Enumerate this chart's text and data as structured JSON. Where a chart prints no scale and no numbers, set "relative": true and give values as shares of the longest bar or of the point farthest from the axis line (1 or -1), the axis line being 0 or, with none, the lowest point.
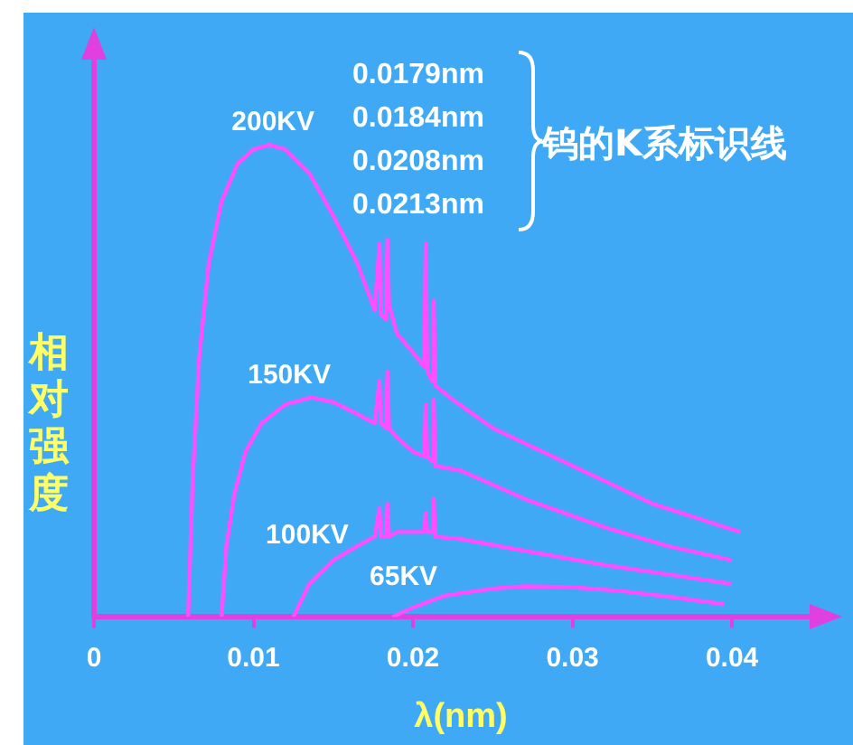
{
  "chart_data": {
    "type": "line",
    "relative": true,
    "xlabel": "λ(nm)",
    "ylabel": "相对强度",
    "xlim": [
      0,
      0.046
    ],
    "xticks": [
      0,
      0.01,
      0.02,
      0.03,
      0.04
    ],
    "grid": false,
    "legend": false,
    "marker": "none",
    "line_style": "solid",
    "series": [
      {
        "name": "200KV",
        "color": "#ff4dff",
        "x": [
          0.0059,
          0.0062,
          0.0066,
          0.0072,
          0.008,
          0.009,
          0.01,
          0.011,
          0.012,
          0.0135,
          0.015,
          0.0165,
          0.0176,
          0.0179,
          0.018,
          0.0183,
          0.0184,
          0.0185,
          0.019,
          0.02,
          0.0207,
          0.0208,
          0.0209,
          0.0212,
          0.0213,
          0.0214,
          0.0225,
          0.025,
          0.03,
          0.035,
          0.0405
        ],
        "values": [
          0,
          0.3,
          0.55,
          0.75,
          0.88,
          0.96,
          0.99,
          1,
          0.99,
          0.94,
          0.85,
          0.75,
          0.65,
          0.79,
          0.64,
          0.63,
          0.8,
          0.66,
          0.6,
          0.56,
          0.53,
          0.79,
          0.52,
          0.5,
          0.67,
          0.49,
          0.46,
          0.4,
          0.32,
          0.24,
          0.18
        ]
      },
      {
        "name": "150KV",
        "color": "#ff4dff",
        "x": [
          0.008,
          0.0083,
          0.0088,
          0.0095,
          0.0105,
          0.012,
          0.0136,
          0.015,
          0.0165,
          0.0176,
          0.0179,
          0.018,
          0.0183,
          0.0184,
          0.0185,
          0.019,
          0.02,
          0.0207,
          0.0208,
          0.0209,
          0.0212,
          0.0213,
          0.0214,
          0.023,
          0.027,
          0.032,
          0.036,
          0.04
        ],
        "values": [
          0,
          0.15,
          0.26,
          0.35,
          0.41,
          0.45,
          0.465,
          0.455,
          0.43,
          0.41,
          0.5,
          0.41,
          0.4,
          0.52,
          0.4,
          0.38,
          0.35,
          0.34,
          0.45,
          0.34,
          0.33,
          0.46,
          0.32,
          0.31,
          0.25,
          0.19,
          0.15,
          0.12
        ]
      },
      {
        "name": "100KV",
        "color": "#ff4dff",
        "x": [
          0.0125,
          0.0135,
          0.015,
          0.0165,
          0.0176,
          0.0179,
          0.018,
          0.0183,
          0.0184,
          0.0185,
          0.019,
          0.02,
          0.0207,
          0.0208,
          0.0209,
          0.0212,
          0.0213,
          0.0214,
          0.023,
          0.027,
          0.032,
          0.036,
          0.04
        ],
        "values": [
          0,
          0.07,
          0.12,
          0.15,
          0.17,
          0.23,
          0.17,
          0.17,
          0.24,
          0.17,
          0.18,
          0.18,
          0.18,
          0.22,
          0.18,
          0.18,
          0.25,
          0.17,
          0.165,
          0.14,
          0.11,
          0.09,
          0.07
        ]
      },
      {
        "name": "65KV",
        "color": "#ff4dff",
        "x": [
          0.0187,
          0.02,
          0.022,
          0.025,
          0.027,
          0.03,
          0.033,
          0.036,
          0.0395
        ],
        "values": [
          0,
          0.02,
          0.045,
          0.06,
          0.065,
          0.063,
          0.055,
          0.043,
          0.027
        ]
      }
    ],
    "annotations": [
      "0.0179nm",
      "0.0184nm",
      "0.0208nm",
      "0.0213nm",
      "钨的K系标识线"
    ]
  }
}
